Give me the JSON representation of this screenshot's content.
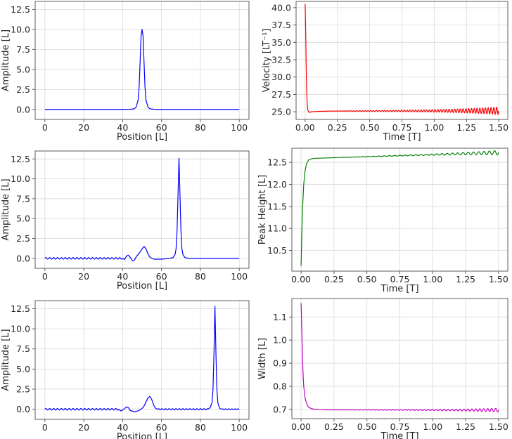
{
  "chart_data": [
    {
      "type": "line",
      "panel": "top-left",
      "xlabel": "Position [L]",
      "ylabel": "Amplitude [L]",
      "xlim": [
        -5,
        105
      ],
      "ylim": [
        -1.25,
        13.5
      ],
      "xticks": [
        0,
        20,
        40,
        60,
        80,
        100
      ],
      "yticks": [
        0.0,
        2.5,
        5.0,
        7.5,
        10.0,
        12.5
      ],
      "x_tick_labels": [
        "0",
        "20",
        "40",
        "60",
        "80",
        "100"
      ],
      "y_tick_labels": [
        "0.0",
        "2.5",
        "5.0",
        "7.5",
        "10.0",
        "12.5"
      ],
      "grid": true,
      "color": "#0000ff",
      "series": [
        {
          "x": [
            0,
            40,
            44,
            46,
            47,
            48,
            48.5,
            49,
            49.5,
            50,
            50.5,
            51,
            51.5,
            52,
            53,
            54,
            56,
            60,
            100
          ],
          "y": [
            0,
            0,
            0.02,
            0.08,
            0.3,
            1.2,
            2.8,
            6.0,
            9.2,
            10.0,
            9.2,
            6.0,
            2.8,
            1.2,
            0.3,
            0.08,
            0.02,
            0,
            0
          ]
        }
      ]
    },
    {
      "type": "line",
      "panel": "top-right",
      "xlabel": "Time [T]",
      "ylabel": "Velocity [LT⁻¹]",
      "xlim": [
        -0.07,
        1.57
      ],
      "ylim": [
        23.9,
        40.9
      ],
      "xticks": [
        0.0,
        0.25,
        0.5,
        0.75,
        1.0,
        1.25,
        1.5
      ],
      "yticks": [
        25.0,
        27.5,
        30.0,
        32.5,
        35.0,
        37.5,
        40.0
      ],
      "x_tick_labels": [
        "0.00",
        "0.25",
        "0.50",
        "0.75",
        "1.00",
        "1.25",
        "1.50"
      ],
      "y_tick_labels": [
        "25.0",
        "27.5",
        "30.0",
        "32.5",
        "35.0",
        "37.5",
        "40.0"
      ],
      "grid": true,
      "color": "#ff0000",
      "series": [
        {
          "x": [
            0.0,
            0.004,
            0.008,
            0.012,
            0.016,
            0.02,
            0.03,
            0.05,
            0.1,
            0.2
          ],
          "y": [
            40.5,
            37.0,
            32.0,
            28.0,
            26.2,
            25.3,
            24.9,
            25.0,
            25.05,
            25.1
          ],
          "oscillation": {
            "from": 0.2,
            "to": 1.5,
            "base_start": 25.1,
            "base_end": 25.15,
            "amp_start": 0.03,
            "amp_end": 0.55,
            "cycles": 60
          }
        }
      ]
    },
    {
      "type": "line",
      "panel": "middle-left",
      "xlabel": "Position [L]",
      "ylabel": "Amplitude [L]",
      "xlim": [
        -5,
        105
      ],
      "ylim": [
        -1.25,
        13.5
      ],
      "xticks": [
        0,
        20,
        40,
        60,
        80,
        100
      ],
      "yticks": [
        0.0,
        2.5,
        5.0,
        7.5,
        10.0,
        12.5
      ],
      "x_tick_labels": [
        "0",
        "20",
        "40",
        "60",
        "80",
        "100"
      ],
      "y_tick_labels": [
        "0.0",
        "2.5",
        "5.0",
        "7.5",
        "10.0",
        "12.5"
      ],
      "grid": true,
      "color": "#0000ff",
      "series": [
        {
          "x": [
            0,
            20,
            30,
            36,
            38,
            39,
            40,
            41,
            42,
            43,
            44,
            45,
            46,
            47,
            48,
            49,
            50,
            51,
            52,
            53,
            54,
            56,
            60,
            64,
            66,
            67,
            67.5,
            68,
            68.5,
            69,
            69.5,
            70,
            70.5,
            71,
            72,
            74,
            100
          ],
          "y": [
            0,
            0,
            0,
            0.05,
            0.15,
            0.3,
            0.1,
            -0.15,
            0.3,
            0.4,
            0.1,
            -0.3,
            -0.25,
            0.2,
            0.5,
            0.8,
            1.2,
            1.5,
            1.2,
            0.6,
            0.15,
            -0.1,
            -0.1,
            0,
            0.1,
            0.5,
            1.2,
            3.5,
            8.0,
            12.6,
            8.0,
            3.5,
            1.2,
            0.5,
            0.1,
            0,
            0
          ],
          "ripple": {
            "from": 0,
            "to": 40,
            "amp": 0.1,
            "period": 2.0
          }
        }
      ]
    },
    {
      "type": "line",
      "panel": "middle-right",
      "xlabel": "Time [T]",
      "ylabel": "Peak Height [L]",
      "xlim": [
        -0.07,
        1.57
      ],
      "ylim": [
        10.03,
        12.82
      ],
      "xticks": [
        0.0,
        0.25,
        0.5,
        0.75,
        1.0,
        1.25,
        1.5
      ],
      "yticks": [
        10.5,
        11.0,
        11.5,
        12.0,
        12.5
      ],
      "x_tick_labels": [
        "0.00",
        "0.25",
        "0.50",
        "0.75",
        "1.00",
        "1.25",
        "1.50"
      ],
      "y_tick_labels": [
        "10.5",
        "11.0",
        "11.5",
        "12.0",
        "12.5"
      ],
      "grid": true,
      "color": "#008000",
      "series": [
        {
          "x": [
            0.0,
            0.005,
            0.01,
            0.02,
            0.03,
            0.04,
            0.05,
            0.06,
            0.08,
            0.1,
            0.2,
            0.3
          ],
          "y": [
            10.15,
            10.8,
            11.4,
            12.0,
            12.3,
            12.45,
            12.52,
            12.56,
            12.58,
            12.59,
            12.6,
            12.61
          ],
          "oscillation": {
            "from": 0.3,
            "to": 1.5,
            "base_start": 12.61,
            "base_end": 12.72,
            "amp_start": 0.003,
            "amp_end": 0.05,
            "cycles": 30
          }
        }
      ]
    },
    {
      "type": "line",
      "panel": "bottom-left",
      "xlabel": "Position [L]",
      "ylabel": "Amplitude [L]",
      "xlim": [
        -5,
        105
      ],
      "ylim": [
        -1.25,
        13.5
      ],
      "xticks": [
        0,
        20,
        40,
        60,
        80,
        100
      ],
      "yticks": [
        0.0,
        2.5,
        5.0,
        7.5,
        10.0,
        12.5
      ],
      "x_tick_labels": [
        "0",
        "20",
        "40",
        "60",
        "80",
        "100"
      ],
      "y_tick_labels": [
        "0.0",
        "2.5",
        "5.0",
        "7.5",
        "10.0",
        "12.5"
      ],
      "grid": true,
      "color": "#0000ff",
      "series": [
        {
          "x": [
            0,
            36,
            38,
            39,
            40,
            41,
            42,
            43,
            44,
            46,
            48,
            50,
            51,
            52,
            53,
            54,
            55,
            56,
            57,
            58,
            60,
            70,
            80,
            84,
            85,
            86,
            86.5,
            87,
            87.5,
            88,
            88.5,
            89,
            90,
            91,
            92,
            94,
            100
          ],
          "y": [
            0,
            0,
            0.1,
            -0.2,
            -0.1,
            0.1,
            0.3,
            0.2,
            -0.15,
            -0.3,
            -0.2,
            0.1,
            0.4,
            0.9,
            1.4,
            1.6,
            1.2,
            0.5,
            0.1,
            -0.05,
            -0.05,
            0,
            0,
            0.05,
            0.2,
            0.8,
            2.5,
            7.0,
            12.8,
            7.0,
            2.5,
            0.8,
            0.1,
            -0.05,
            0,
            0,
            0
          ],
          "ripple": {
            "from": 0,
            "to": 38,
            "amp": 0.1,
            "period": 2.0
          },
          "ripple2": {
            "from": 58,
            "to": 84,
            "amp": 0.08,
            "period": 1.8
          },
          "ripple3": {
            "from": 91,
            "to": 100,
            "amp": 0.06,
            "period": 1.6
          }
        }
      ]
    },
    {
      "type": "line",
      "panel": "bottom-right",
      "xlabel": "Time [T]",
      "ylabel": "Width [L]",
      "xlim": [
        -0.07,
        1.57
      ],
      "ylim": [
        0.66,
        1.18
      ],
      "xticks": [
        0.0,
        0.25,
        0.5,
        0.75,
        1.0,
        1.25,
        1.5
      ],
      "yticks": [
        0.7,
        0.8,
        0.9,
        1.0,
        1.1
      ],
      "x_tick_labels": [
        "0.00",
        "0.25",
        "0.50",
        "0.75",
        "1.00",
        "1.25",
        "1.50"
      ],
      "y_tick_labels": [
        "0.7",
        "0.8",
        "0.9",
        "1.0",
        "1.1"
      ],
      "grid": true,
      "color": "#bf00bf",
      "series": [
        {
          "x": [
            0.0,
            0.004,
            0.008,
            0.012,
            0.016,
            0.02,
            0.03,
            0.04,
            0.05,
            0.06,
            0.08,
            0.1,
            0.15,
            0.2,
            0.3
          ],
          "y": [
            1.16,
            1.08,
            0.98,
            0.9,
            0.84,
            0.8,
            0.75,
            0.73,
            0.715,
            0.708,
            0.703,
            0.701,
            0.699,
            0.698,
            0.698
          ],
          "oscillation": {
            "from": 0.3,
            "to": 1.5,
            "base_start": 0.698,
            "base_end": 0.697,
            "amp_start": 0.0005,
            "amp_end": 0.008,
            "cycles": 40
          }
        }
      ]
    }
  ]
}
